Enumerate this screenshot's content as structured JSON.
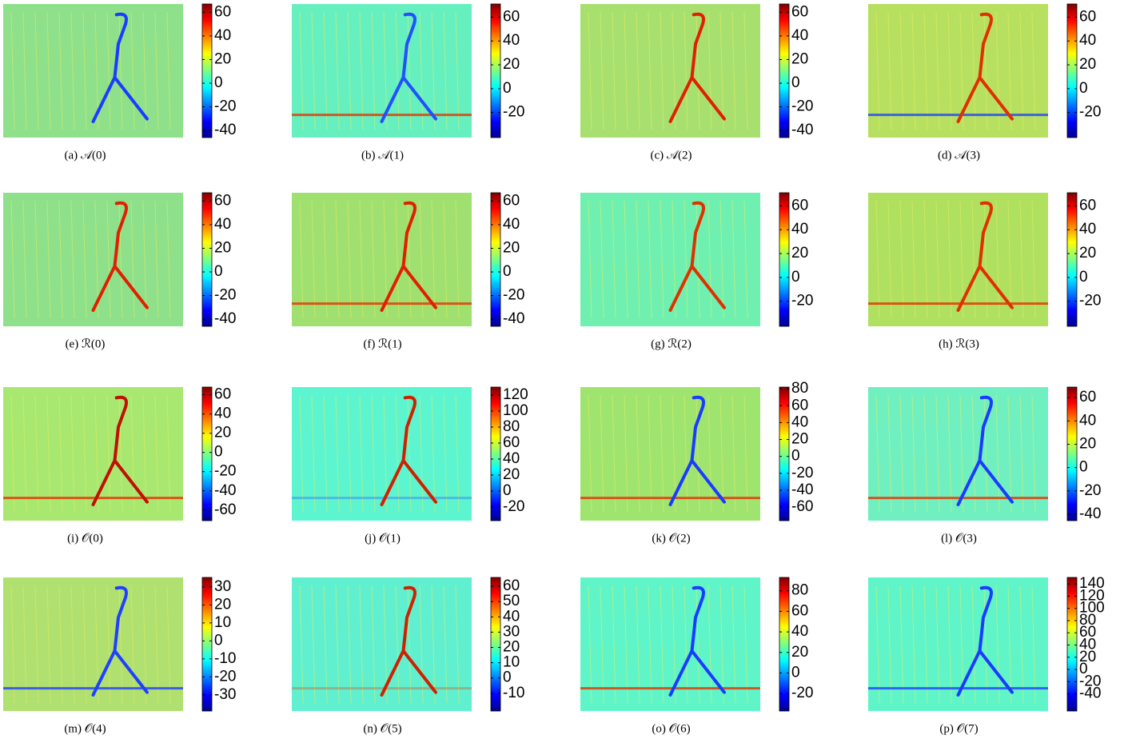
{
  "panels": [
    {
      "caption": "(a) 𝒜(0)",
      "clim": [
        -46,
        67
      ],
      "ticks": [
        60,
        40,
        20,
        0,
        -20,
        -40
      ]
    },
    {
      "caption": "(b) 𝒜(1)",
      "clim": [
        -41,
        71
      ],
      "ticks": [
        60,
        40,
        20,
        0,
        -20
      ]
    },
    {
      "caption": "(c) 𝒜(2)",
      "clim": [
        -46,
        67
      ],
      "ticks": [
        60,
        40,
        20,
        0,
        -20,
        -40
      ]
    },
    {
      "caption": "(d) 𝒜(3)",
      "clim": [
        -41,
        71
      ],
      "ticks": [
        60,
        40,
        20,
        0,
        -20
      ]
    },
    {
      "caption": "(e) ℛ(0)",
      "clim": [
        -46,
        67
      ],
      "ticks": [
        60,
        40,
        20,
        0,
        -20,
        -40
      ]
    },
    {
      "caption": "(f) ℛ(1)",
      "clim": [
        -46,
        67
      ],
      "ticks": [
        60,
        40,
        20,
        0,
        -20,
        -40
      ]
    },
    {
      "caption": "(g) ℛ(2)",
      "clim": [
        -41,
        71
      ],
      "ticks": [
        60,
        40,
        20,
        0,
        -20
      ]
    },
    {
      "caption": "(h) ℛ(3)",
      "clim": [
        -41,
        71
      ],
      "ticks": [
        60,
        40,
        20,
        0,
        -20
      ]
    },
    {
      "caption": "(i) 𝒪(0)",
      "clim": [
        -71,
        68
      ],
      "ticks": [
        60,
        40,
        20,
        0,
        -20,
        -40,
        -60
      ]
    },
    {
      "caption": "(j) 𝒪(1)",
      "clim": [
        -37,
        130
      ],
      "ticks": [
        120,
        100,
        80,
        60,
        40,
        20,
        0,
        -20
      ]
    },
    {
      "caption": "(k) 𝒪(2)",
      "clim": [
        -76,
        82
      ],
      "ticks": [
        80,
        60,
        40,
        20,
        0,
        -20,
        -40,
        -60
      ]
    },
    {
      "caption": "(l) 𝒪(3)",
      "clim": [
        -45.5,
        69
      ],
      "ticks": [
        60,
        40,
        20,
        0,
        -20,
        -40
      ]
    },
    {
      "caption": "(m) 𝒪(4)",
      "clim": [
        -39,
        35.3
      ],
      "ticks": [
        30,
        20,
        10,
        0,
        -10,
        -20,
        -30
      ]
    },
    {
      "caption": "(n) 𝒪(5)",
      "clim": [
        -21.6,
        65.8
      ],
      "ticks": [
        60,
        50,
        40,
        30,
        20,
        10,
        0,
        -10
      ]
    },
    {
      "caption": "(o) 𝒪(6)",
      "clim": [
        -37,
        93
      ],
      "ticks": [
        80,
        60,
        40,
        20,
        0,
        -20
      ]
    },
    {
      "caption": "(p) 𝒪(7)",
      "clim": [
        -68,
        150.6
      ],
      "ticks": [
        140,
        120,
        100,
        80,
        60,
        40,
        20,
        0,
        -20,
        -40
      ]
    }
  ]
}
